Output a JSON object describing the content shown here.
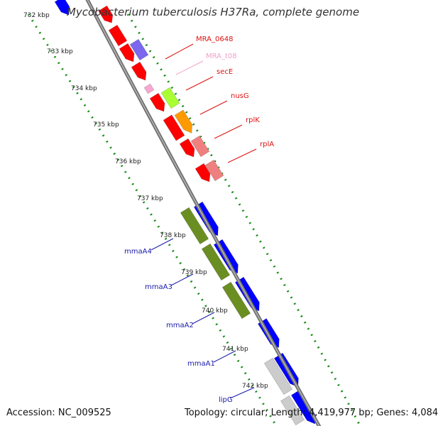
{
  "title": "Mycobacterium tuberculosis H37Ra, complete genome",
  "footer": {
    "accession_label": "Accession:",
    "accession": "NC_009525",
    "topology_label": "Topology:",
    "topology": "circular;",
    "length_label": "Length:",
    "length": "4,419,977 bp;",
    "genes_label": "Genes:",
    "genes": "4,084"
  },
  "ticks": [
    "732 kbp",
    "733 kbp",
    "734 kbp",
    "735 kbp",
    "736 kbp",
    "737 kbp",
    "738 kbp",
    "739 kbp",
    "740 kbp",
    "741 kbp",
    "742 kbp"
  ],
  "gene_labels_right": [
    {
      "text": "MRA_0648",
      "color": "#dd1111"
    },
    {
      "text": "MRA_t08",
      "color": "#f2a0c8"
    },
    {
      "text": "secE",
      "color": "#dd1111"
    },
    {
      "text": "nusG",
      "color": "#dd1111"
    },
    {
      "text": "rplK",
      "color": "#dd1111"
    },
    {
      "text": "rplA",
      "color": "#dd1111"
    }
  ],
  "gene_labels_left": [
    {
      "text": "mmaA4",
      "color": "#1a1aaa"
    },
    {
      "text": "mmaA3",
      "color": "#1a1aaa"
    },
    {
      "text": "mmaA2",
      "color": "#1a1aaa"
    },
    {
      "text": "mmaA1",
      "color": "#1a1aaa"
    },
    {
      "text": "lipG",
      "color": "#1a1aaa"
    }
  ],
  "colors": {
    "backbone": "#888888",
    "tick_dots": "#1a8a1a",
    "cds_forward": "#ff0000",
    "cds_reverse": "#0000ff",
    "methyltransferase": "#6b8e23",
    "trna": "#f6a8d0",
    "purple": "#7b68ee",
    "lime": "#aaff33",
    "orange": "#ff9900",
    "pink": "#f08080",
    "grey": "#cccccc"
  }
}
